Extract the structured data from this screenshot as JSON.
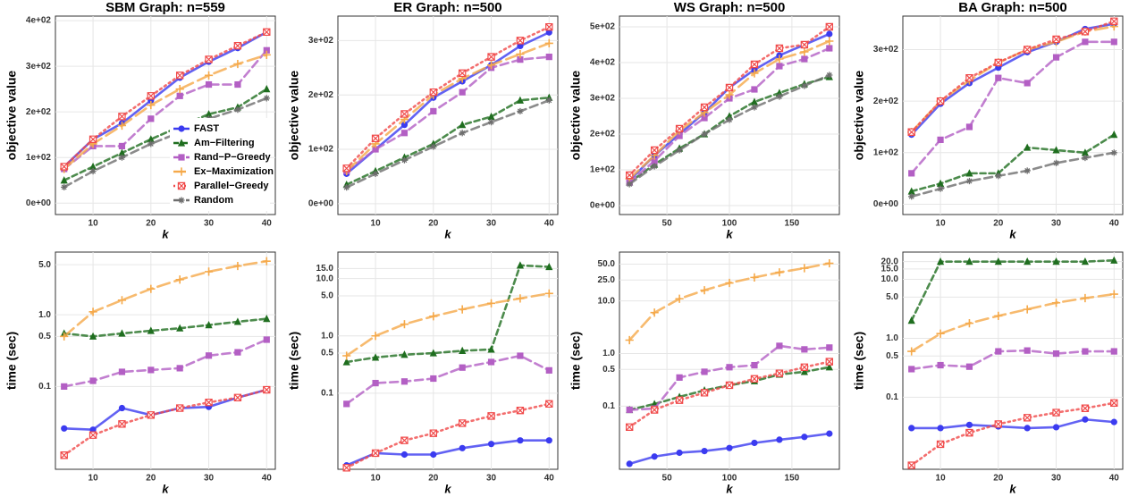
{
  "chart_data": [
    {
      "type": "line",
      "title": "SBM Graph: n=559",
      "xlabel": "k",
      "ylabel": "objective value",
      "grid": true,
      "legend": "bottom-right",
      "x": [
        5,
        10,
        15,
        20,
        25,
        30,
        35,
        40
      ],
      "xlim": [
        3.5,
        41.5
      ],
      "xticks": [
        10,
        20,
        30,
        40
      ],
      "ylim": [
        -25,
        410
      ],
      "yticks": [
        {
          "value": 0,
          "label": "0e+00"
        },
        {
          "value": 100,
          "label": "1e+02"
        },
        {
          "value": 200,
          "label": "2e+02"
        },
        {
          "value": 300,
          "label": "3e+02"
        },
        {
          "value": 400,
          "label": "4e+02"
        }
      ],
      "series": [
        {
          "name": "FAST",
          "color": "#3b3bf0",
          "values": [
            80,
            140,
            175,
            225,
            275,
            310,
            340,
            375
          ]
        },
        {
          "name": "Am−Filtering",
          "color": "#1f6e1f",
          "values": [
            50,
            80,
            110,
            140,
            168,
            195,
            210,
            250
          ]
        },
        {
          "name": "Rand−P−Greedy",
          "color": "#b35fc4",
          "values": [
            75,
            125,
            125,
            185,
            235,
            260,
            260,
            335
          ]
        },
        {
          "name": "Ex−Maximization",
          "color": "#f5a94a",
          "values": [
            75,
            130,
            170,
            215,
            250,
            280,
            305,
            325
          ]
        },
        {
          "name": "Parallel−Greedy",
          "color": "#f04a4a",
          "values": [
            80,
            140,
            190,
            235,
            280,
            315,
            345,
            375
          ]
        },
        {
          "name": "Random",
          "color": "#6e6e6e",
          "values": [
            35,
            70,
            100,
            130,
            155,
            185,
            205,
            230
          ]
        }
      ]
    },
    {
      "type": "line",
      "title": "ER Graph: n=500",
      "xlabel": "k",
      "ylabel": "objective value",
      "grid": true,
      "x": [
        5,
        10,
        15,
        20,
        25,
        30,
        35,
        40
      ],
      "xlim": [
        3.5,
        41.5
      ],
      "xticks": [
        10,
        20,
        30,
        40
      ],
      "ylim": [
        -20,
        345
      ],
      "yticks": [
        {
          "value": 0,
          "label": "0e+00"
        },
        {
          "value": 100,
          "label": "1e+02"
        },
        {
          "value": 200,
          "label": "2e+02"
        },
        {
          "value": 300,
          "label": "3e+02"
        }
      ],
      "series": [
        {
          "name": "FAST",
          "color": "#3b3bf0",
          "values": [
            55,
            100,
            145,
            195,
            225,
            255,
            290,
            315
          ]
        },
        {
          "name": "Am−Filtering",
          "color": "#1f6e1f",
          "values": [
            35,
            60,
            85,
            110,
            145,
            160,
            190,
            195
          ]
        },
        {
          "name": "Rand−P−Greedy",
          "color": "#b35fc4",
          "values": [
            60,
            100,
            130,
            170,
            205,
            250,
            265,
            270
          ]
        },
        {
          "name": "Ex−Maximization",
          "color": "#f5a94a",
          "values": [
            60,
            110,
            155,
            200,
            230,
            255,
            275,
            295
          ]
        },
        {
          "name": "Parallel−Greedy",
          "color": "#f04a4a",
          "values": [
            65,
            120,
            165,
            205,
            240,
            270,
            300,
            325
          ]
        },
        {
          "name": "Random",
          "color": "#6e6e6e",
          "values": [
            30,
            55,
            80,
            105,
            130,
            150,
            170,
            190
          ]
        }
      ]
    },
    {
      "type": "line",
      "title": "WS Graph: n=500",
      "xlabel": "k",
      "ylabel": "objective value",
      "grid": true,
      "x": [
        20,
        40,
        60,
        80,
        100,
        120,
        140,
        160,
        180
      ],
      "xlim": [
        12,
        188
      ],
      "xticks": [
        50,
        100,
        150
      ],
      "ylim": [
        -25,
        530
      ],
      "yticks": [
        {
          "value": 0,
          "label": "0e+00"
        },
        {
          "value": 100,
          "label": "1e+02"
        },
        {
          "value": 200,
          "label": "2e+02"
        },
        {
          "value": 300,
          "label": "3e+02"
        },
        {
          "value": 400,
          "label": "4e+02"
        },
        {
          "value": 500,
          "label": "5e+02"
        }
      ],
      "series": [
        {
          "name": "FAST",
          "color": "#3b3bf0",
          "values": [
            70,
            140,
            200,
            260,
            330,
            380,
            420,
            450,
            480
          ]
        },
        {
          "name": "Am−Filtering",
          "color": "#1f6e1f",
          "values": [
            65,
            115,
            160,
            200,
            250,
            290,
            315,
            340,
            360
          ]
        },
        {
          "name": "Rand−P−Greedy",
          "color": "#b35fc4",
          "values": [
            65,
            125,
            195,
            245,
            300,
            325,
            390,
            410,
            440
          ]
        },
        {
          "name": "Ex−Maximization",
          "color": "#f5a94a",
          "values": [
            75,
            140,
            210,
            260,
            310,
            370,
            410,
            430,
            460
          ]
        },
        {
          "name": "Parallel−Greedy",
          "color": "#f04a4a",
          "values": [
            85,
            155,
            215,
            275,
            330,
            395,
            440,
            450,
            500
          ]
        },
        {
          "name": "Random",
          "color": "#6e6e6e",
          "values": [
            60,
            110,
            155,
            200,
            240,
            275,
            305,
            335,
            365
          ]
        }
      ]
    },
    {
      "type": "line",
      "title": "BA Graph: n=500",
      "xlabel": "k",
      "ylabel": "objective value",
      "grid": true,
      "x": [
        5,
        10,
        15,
        20,
        25,
        30,
        35,
        40
      ],
      "xlim": [
        3.5,
        41.5
      ],
      "xticks": [
        10,
        20,
        30,
        40
      ],
      "ylim": [
        -20,
        365
      ],
      "yticks": [
        {
          "value": 0,
          "label": "0e+00"
        },
        {
          "value": 100,
          "label": "1e+02"
        },
        {
          "value": 200,
          "label": "2e+02"
        },
        {
          "value": 300,
          "label": "3e+02"
        }
      ],
      "series": [
        {
          "name": "FAST",
          "color": "#3b3bf0",
          "values": [
            135,
            195,
            235,
            265,
            295,
            315,
            340,
            350
          ]
        },
        {
          "name": "Am−Filtering",
          "color": "#1f6e1f",
          "values": [
            25,
            40,
            60,
            60,
            110,
            105,
            100,
            135
          ]
        },
        {
          "name": "Rand−P−Greedy",
          "color": "#b35fc4",
          "values": [
            60,
            125,
            150,
            245,
            235,
            285,
            315,
            315
          ]
        },
        {
          "name": "Ex−Maximization",
          "color": "#f5a94a",
          "values": [
            140,
            200,
            240,
            275,
            300,
            315,
            335,
            345
          ]
        },
        {
          "name": "Parallel−Greedy",
          "color": "#f04a4a",
          "values": [
            140,
            200,
            245,
            275,
            300,
            320,
            335,
            355
          ]
        },
        {
          "name": "Random",
          "color": "#6e6e6e",
          "values": [
            15,
            30,
            45,
            55,
            65,
            80,
            90,
            100
          ]
        }
      ]
    },
    {
      "type": "line",
      "xlabel": "k",
      "ylabel": "time (sec)",
      "grid": true,
      "log_y": true,
      "x": [
        5,
        10,
        15,
        20,
        25,
        30,
        35,
        40
      ],
      "xlim": [
        3.5,
        41.5
      ],
      "xticks": [
        10,
        20,
        30,
        40
      ],
      "ylim": [
        0.007,
        7.5
      ],
      "yticks": [
        0.1,
        0.5,
        {
          "value": 1,
          "label": "1.0"
        },
        {
          "value": 5,
          "label": "5.0"
        }
      ],
      "series": [
        {
          "name": "FAST",
          "color": "#3b3bf0",
          "values": [
            0.026,
            0.025,
            0.05,
            0.04,
            0.05,
            0.052,
            0.07,
            0.09
          ]
        },
        {
          "name": "Am−Filtering",
          "color": "#1f6e1f",
          "values": [
            0.55,
            0.5,
            0.55,
            0.6,
            0.65,
            0.72,
            0.8,
            0.88
          ]
        },
        {
          "name": "Rand−P−Greedy",
          "color": "#b35fc4",
          "values": [
            0.1,
            0.12,
            0.16,
            0.17,
            0.18,
            0.27,
            0.3,
            0.45
          ]
        },
        {
          "name": "Ex−Maximization",
          "color": "#f5a94a",
          "values": [
            0.5,
            1.1,
            1.6,
            2.3,
            3.1,
            4.0,
            4.8,
            5.6
          ]
        },
        {
          "name": "Parallel−Greedy",
          "color": "#f04a4a",
          "values": [
            0.011,
            0.021,
            0.03,
            0.04,
            0.05,
            0.06,
            0.07,
            0.09
          ]
        }
      ]
    },
    {
      "type": "line",
      "xlabel": "k",
      "ylabel": "time (sec)",
      "grid": true,
      "log_y": true,
      "x": [
        5,
        10,
        15,
        20,
        25,
        30,
        35,
        40
      ],
      "xlim": [
        3.5,
        41.5
      ],
      "xticks": [
        10,
        20,
        30,
        40
      ],
      "ylim": [
        0.0047,
        29
      ],
      "yticks": [
        0.1,
        0.5,
        {
          "value": 1,
          "label": "1.0"
        },
        {
          "value": 5,
          "label": "5.0"
        },
        {
          "value": 10,
          "label": "10.0"
        },
        {
          "value": 15,
          "label": "15.0"
        }
      ],
      "series": [
        {
          "name": "FAST",
          "color": "#3b3bf0",
          "values": [
            0.0055,
            0.009,
            0.0085,
            0.0085,
            0.011,
            0.013,
            0.015,
            0.015
          ]
        },
        {
          "name": "Am−Filtering",
          "color": "#1f6e1f",
          "values": [
            0.35,
            0.42,
            0.47,
            0.5,
            0.55,
            0.58,
            17,
            16
          ]
        },
        {
          "name": "Rand−P−Greedy",
          "color": "#b35fc4",
          "values": [
            0.065,
            0.15,
            0.16,
            0.18,
            0.28,
            0.35,
            0.45,
            0.25
          ]
        },
        {
          "name": "Ex−Maximization",
          "color": "#f5a94a",
          "values": [
            0.45,
            1.0,
            1.6,
            2.2,
            2.9,
            3.7,
            4.5,
            5.5
          ]
        },
        {
          "name": "Parallel−Greedy",
          "color": "#f04a4a",
          "values": [
            0.005,
            0.009,
            0.015,
            0.02,
            0.03,
            0.04,
            0.05,
            0.065
          ]
        }
      ]
    },
    {
      "type": "line",
      "xlabel": "k",
      "ylabel": "time (sec)",
      "grid": true,
      "log_y": true,
      "x": [
        20,
        40,
        60,
        80,
        100,
        120,
        140,
        160,
        180
      ],
      "xlim": [
        12,
        188
      ],
      "xticks": [
        50,
        100,
        150
      ],
      "ylim": [
        0.0063,
        85
      ],
      "yticks": [
        0.1,
        0.5,
        {
          "value": 1,
          "label": "1.0"
        },
        {
          "value": 10,
          "label": "10.0"
        },
        {
          "value": 25,
          "label": "25.0"
        },
        {
          "value": 50,
          "label": "50.0"
        }
      ],
      "series": [
        {
          "name": "FAST",
          "color": "#3b3bf0",
          "values": [
            0.008,
            0.011,
            0.013,
            0.014,
            0.016,
            0.02,
            0.023,
            0.026,
            0.03
          ]
        },
        {
          "name": "Am−Filtering",
          "color": "#1f6e1f",
          "values": [
            0.085,
            0.11,
            0.15,
            0.2,
            0.25,
            0.3,
            0.4,
            0.45,
            0.55
          ]
        },
        {
          "name": "Rand−P−Greedy",
          "color": "#b35fc4",
          "values": [
            0.085,
            0.09,
            0.35,
            0.45,
            0.55,
            0.6,
            1.4,
            1.2,
            1.3
          ]
        },
        {
          "name": "Ex−Maximization",
          "color": "#f5a94a",
          "values": [
            1.8,
            6,
            11,
            16,
            22,
            28,
            35,
            42,
            52
          ]
        },
        {
          "name": "Parallel−Greedy",
          "color": "#f04a4a",
          "values": [
            0.04,
            0.085,
            0.13,
            0.18,
            0.25,
            0.33,
            0.42,
            0.55,
            0.7
          ]
        }
      ]
    },
    {
      "type": "line",
      "xlabel": "k",
      "ylabel": "time (sec)",
      "grid": true,
      "log_y": true,
      "x": [
        5,
        10,
        15,
        20,
        25,
        30,
        35,
        40
      ],
      "xlim": [
        3.5,
        41.5
      ],
      "xticks": [
        10,
        20,
        30,
        40
      ],
      "ylim": [
        0.006,
        29
      ],
      "yticks": [
        0.1,
        0.5,
        {
          "value": 1,
          "label": "1.0"
        },
        {
          "value": 5,
          "label": "5.0"
        },
        {
          "value": 10,
          "label": "10.0"
        },
        {
          "value": 15,
          "label": "15.0"
        },
        {
          "value": 20,
          "label": "20.0"
        }
      ],
      "series": [
        {
          "name": "FAST",
          "color": "#3b3bf0",
          "values": [
            0.03,
            0.03,
            0.034,
            0.032,
            0.03,
            0.031,
            0.042,
            0.038
          ]
        },
        {
          "name": "Am−Filtering",
          "color": "#1f6e1f",
          "values": [
            2,
            20,
            20,
            20,
            20,
            20,
            20,
            21
          ]
        },
        {
          "name": "Rand−P−Greedy",
          "color": "#b35fc4",
          "values": [
            0.3,
            0.35,
            0.33,
            0.6,
            0.62,
            0.55,
            0.6,
            0.6
          ]
        },
        {
          "name": "Ex−Maximization",
          "color": "#f5a94a",
          "values": [
            0.6,
            1.2,
            1.8,
            2.4,
            3.1,
            4.0,
            4.8,
            5.6
          ]
        },
        {
          "name": "Parallel−Greedy",
          "color": "#f04a4a",
          "values": [
            0.007,
            0.016,
            0.025,
            0.035,
            0.045,
            0.055,
            0.065,
            0.08
          ]
        }
      ]
    }
  ]
}
